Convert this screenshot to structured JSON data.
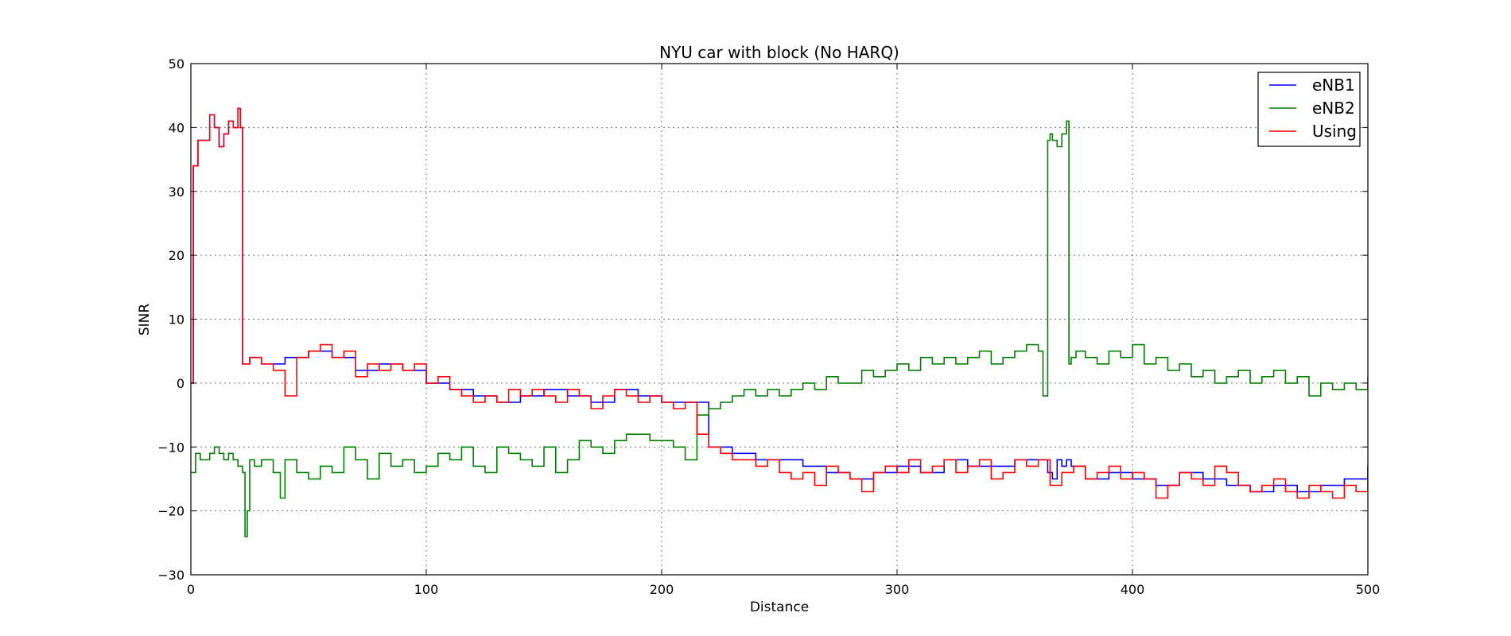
{
  "chart_data": {
    "type": "line",
    "title": "NYU car with block (No HARQ)",
    "xlabel": "Distance",
    "ylabel": "SINR",
    "xlim": [
      0,
      500
    ],
    "ylim": [
      -30,
      50
    ],
    "xticks": [
      0,
      100,
      200,
      300,
      400,
      500
    ],
    "yticks": [
      -30,
      -20,
      -10,
      0,
      10,
      20,
      30,
      40,
      50
    ],
    "grid": true,
    "legend_position": "top-right",
    "series": [
      {
        "name": "eNB1",
        "color": "#0000ff",
        "x": [
          0,
          1,
          2,
          3,
          5,
          8,
          10,
          12,
          14,
          16,
          18,
          20,
          21,
          22,
          23,
          25,
          30,
          40,
          50,
          60,
          70,
          80,
          90,
          100,
          110,
          120,
          130,
          140,
          150,
          160,
          170,
          180,
          190,
          200,
          210,
          220,
          230,
          240,
          250,
          260,
          270,
          280,
          290,
          300,
          310,
          320,
          330,
          340,
          350,
          360,
          364,
          366,
          368,
          370,
          372,
          374,
          380,
          390,
          400,
          410,
          420,
          430,
          440,
          450,
          460,
          470,
          480,
          490,
          500
        ],
        "y": [
          0,
          34,
          34,
          38,
          38,
          42,
          40,
          37,
          39,
          41,
          40,
          43,
          40,
          3,
          3,
          4,
          3,
          4,
          5,
          4,
          2,
          3,
          2,
          0,
          -1,
          -2,
          -3,
          -2,
          -1,
          -2,
          -3,
          -1,
          -2,
          -3,
          -3,
          -10,
          -11,
          -12,
          -12,
          -13,
          -14,
          -15,
          -14,
          -13,
          -14,
          -12,
          -13,
          -13,
          -12,
          -12,
          -14,
          -15,
          -12,
          -13,
          -12,
          -13,
          -15,
          -14,
          -15,
          -16,
          -14,
          -15,
          -16,
          -17,
          -16,
          -17,
          -16,
          -15,
          -13
        ]
      },
      {
        "name": "eNB2",
        "color": "#008000",
        "x": [
          0,
          2,
          4,
          6,
          8,
          10,
          12,
          14,
          16,
          18,
          20,
          22,
          23,
          24,
          25,
          27,
          30,
          35,
          38,
          40,
          45,
          50,
          55,
          60,
          65,
          70,
          75,
          80,
          85,
          90,
          95,
          100,
          105,
          110,
          115,
          120,
          125,
          130,
          135,
          140,
          145,
          150,
          155,
          160,
          165,
          170,
          175,
          180,
          185,
          190,
          195,
          200,
          205,
          210,
          215,
          220,
          225,
          230,
          235,
          240,
          245,
          250,
          255,
          260,
          265,
          270,
          275,
          280,
          285,
          290,
          295,
          300,
          305,
          310,
          315,
          320,
          325,
          330,
          335,
          340,
          345,
          350,
          355,
          360,
          362,
          364,
          365,
          366,
          368,
          370,
          372,
          373,
          374,
          376,
          380,
          385,
          390,
          395,
          400,
          405,
          410,
          415,
          420,
          425,
          430,
          435,
          440,
          445,
          450,
          455,
          460,
          465,
          470,
          475,
          480,
          485,
          490,
          495,
          500
        ],
        "y": [
          -14,
          -11,
          -12,
          -12,
          -11,
          -10,
          -11,
          -12,
          -11,
          -12,
          -13,
          -14,
          -24,
          -20,
          -12,
          -13,
          -12,
          -14,
          -18,
          -12,
          -14,
          -15,
          -13,
          -14,
          -10,
          -12,
          -15,
          -11,
          -13,
          -12,
          -14,
          -13,
          -11,
          -12,
          -10,
          -13,
          -14,
          -10,
          -11,
          -12,
          -13,
          -10,
          -14,
          -12,
          -9,
          -10,
          -11,
          -9,
          -8,
          -8,
          -9,
          -9,
          -10,
          -12,
          -5,
          -4,
          -3,
          -2,
          -1,
          -2,
          -1,
          -2,
          -1,
          0,
          -1,
          1,
          0,
          0,
          2,
          1,
          2,
          3,
          2,
          4,
          3,
          4,
          3,
          4,
          5,
          3,
          4,
          5,
          6,
          5,
          -2,
          38,
          39,
          38,
          37,
          39,
          41,
          3,
          4,
          5,
          4,
          3,
          5,
          4,
          6,
          3,
          4,
          2,
          3,
          1,
          2,
          0,
          1,
          2,
          0,
          1,
          2,
          0,
          1,
          -2,
          0,
          -1,
          0,
          -1,
          1
        ]
      },
      {
        "name": "Using",
        "color": "#ff0000",
        "x": [
          0,
          1,
          2,
          3,
          5,
          8,
          10,
          12,
          14,
          16,
          18,
          20,
          21,
          22,
          23,
          25,
          30,
          35,
          40,
          45,
          50,
          55,
          60,
          65,
          70,
          75,
          80,
          85,
          90,
          95,
          100,
          105,
          110,
          115,
          120,
          125,
          130,
          135,
          140,
          145,
          150,
          155,
          160,
          165,
          170,
          175,
          180,
          185,
          190,
          195,
          200,
          205,
          210,
          215,
          220,
          225,
          230,
          235,
          240,
          245,
          250,
          255,
          260,
          265,
          270,
          275,
          280,
          285,
          290,
          295,
          300,
          305,
          310,
          315,
          320,
          325,
          330,
          335,
          340,
          345,
          350,
          355,
          360,
          365,
          370,
          375,
          380,
          385,
          390,
          395,
          400,
          405,
          410,
          415,
          420,
          425,
          430,
          435,
          440,
          445,
          450,
          455,
          460,
          465,
          470,
          475,
          480,
          485,
          490,
          495,
          500
        ],
        "y": [
          0,
          34,
          34,
          38,
          38,
          42,
          40,
          37,
          39,
          41,
          40,
          43,
          40,
          3,
          3,
          4,
          3,
          2,
          -2,
          4,
          5,
          6,
          4,
          5,
          1,
          3,
          2,
          3,
          2,
          3,
          0,
          1,
          -1,
          -2,
          -3,
          -2,
          -3,
          -1,
          -2,
          -1,
          -2,
          -3,
          -1,
          -2,
          -4,
          -2,
          -1,
          -2,
          -3,
          -2,
          -3,
          -4,
          -3,
          -8,
          -10,
          -11,
          -12,
          -12,
          -13,
          -12,
          -14,
          -15,
          -14,
          -16,
          -13,
          -14,
          -15,
          -17,
          -14,
          -13,
          -14,
          -12,
          -14,
          -13,
          -12,
          -14,
          -13,
          -12,
          -15,
          -14,
          -12,
          -13,
          -12,
          -16,
          -14,
          -13,
          -15,
          -14,
          -13,
          -15,
          -14,
          -15,
          -18,
          -16,
          -14,
          -15,
          -16,
          -13,
          -14,
          -16,
          -17,
          -16,
          -15,
          -17,
          -18,
          -16,
          -17,
          -18,
          -16,
          -17,
          -13
        ]
      }
    ]
  }
}
